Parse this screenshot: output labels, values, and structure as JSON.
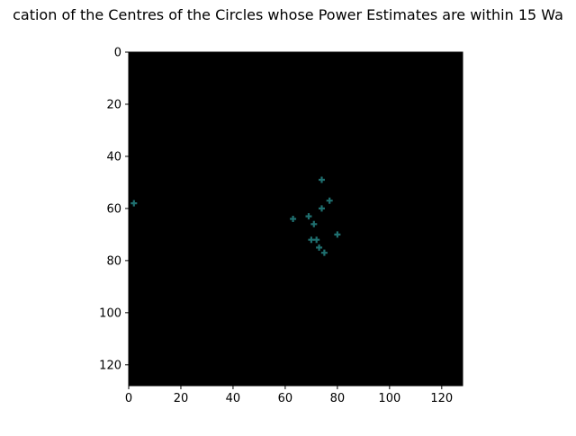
{
  "chart_data": {
    "type": "scatter",
    "title": "cation of the Centres of the Circles whose Power Estimates are within 15 Wa",
    "xlabel": "",
    "ylabel": "",
    "xlim": [
      0,
      128
    ],
    "ylim": [
      128,
      0
    ],
    "y_inverted": true,
    "grid": false,
    "legend": "none",
    "background_color": "#000000",
    "marker": "plus",
    "marker_color": "#1f6f6f",
    "x_ticks": [
      0,
      20,
      40,
      60,
      80,
      100,
      120
    ],
    "y_ticks": [
      0,
      20,
      40,
      60,
      80,
      100,
      120
    ],
    "x_tick_labels": [
      "0",
      "20",
      "40",
      "60",
      "80",
      "100",
      "120"
    ],
    "y_tick_labels": [
      "0",
      "20",
      "40",
      "60",
      "80",
      "100",
      "120"
    ],
    "points": [
      {
        "x": 2,
        "y": 58
      },
      {
        "x": 74,
        "y": 49
      },
      {
        "x": 77,
        "y": 57
      },
      {
        "x": 74,
        "y": 60
      },
      {
        "x": 63,
        "y": 64
      },
      {
        "x": 69,
        "y": 63
      },
      {
        "x": 71,
        "y": 66
      },
      {
        "x": 80,
        "y": 70
      },
      {
        "x": 70,
        "y": 72
      },
      {
        "x": 72,
        "y": 72
      },
      {
        "x": 73,
        "y": 75
      },
      {
        "x": 75,
        "y": 77
      }
    ]
  }
}
